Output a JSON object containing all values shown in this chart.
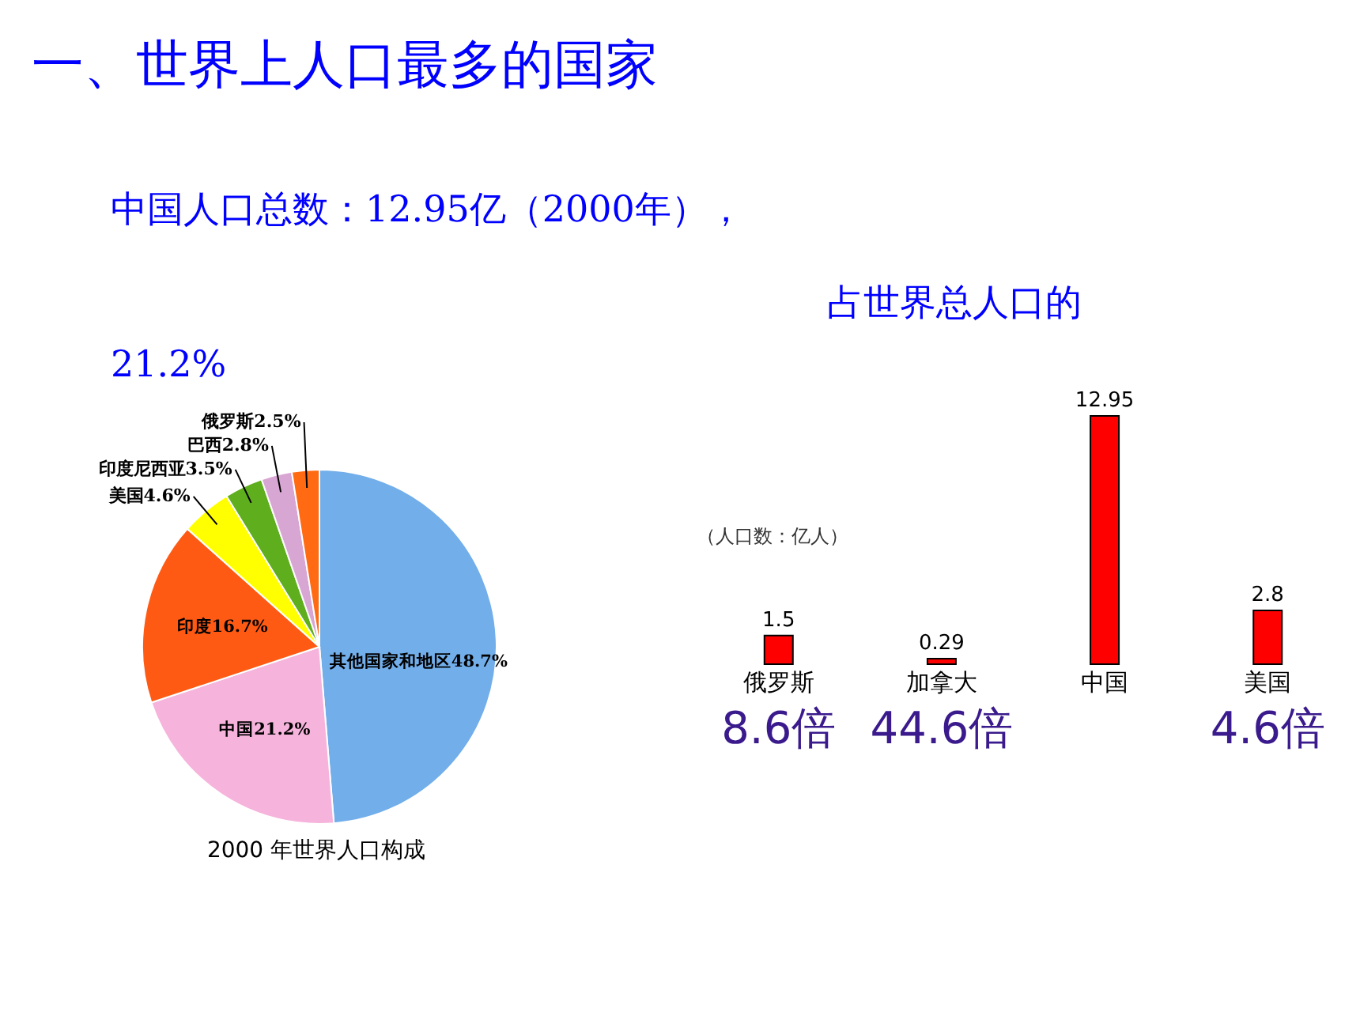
{
  "chart_data": [
    {
      "type": "other",
      "title": "一、世界上人口最多的国家",
      "annotations": [
        "中国人口总数：12.95亿（2000年），",
        "占世界总人口的",
        "21.2%"
      ]
    },
    {
      "type": "pie",
      "title": "2000 年世界人口构成",
      "categories": [
        "其他国家和地区",
        "中国",
        "印度",
        "美国",
        "印度尼西亚",
        "巴西",
        "俄罗斯"
      ],
      "values": [
        48.7,
        21.2,
        16.7,
        4.6,
        3.5,
        2.8,
        2.5
      ],
      "value_labels": [
        "48.7%",
        "21.2%",
        "16.7%",
        "4.6%",
        "3.5%",
        "2.8%",
        "2.5%"
      ],
      "colors": [
        "#72aeea",
        "#f6b4dc",
        "#ff5a14",
        "#ffff00",
        "#5fae1e",
        "#d8a6d2",
        "#ff6a12"
      ]
    },
    {
      "type": "bar",
      "ylabel": "（人口数：亿人）",
      "categories": [
        "俄罗斯",
        "加拿大",
        "中国",
        "美国"
      ],
      "values": [
        1.5,
        0.29,
        12.95,
        2.8
      ],
      "color": "#ff0000",
      "data_labels": true,
      "tick_labels": "x",
      "annotations": [
        "8.6倍",
        "44.6倍",
        "4.6倍"
      ]
    }
  ]
}
